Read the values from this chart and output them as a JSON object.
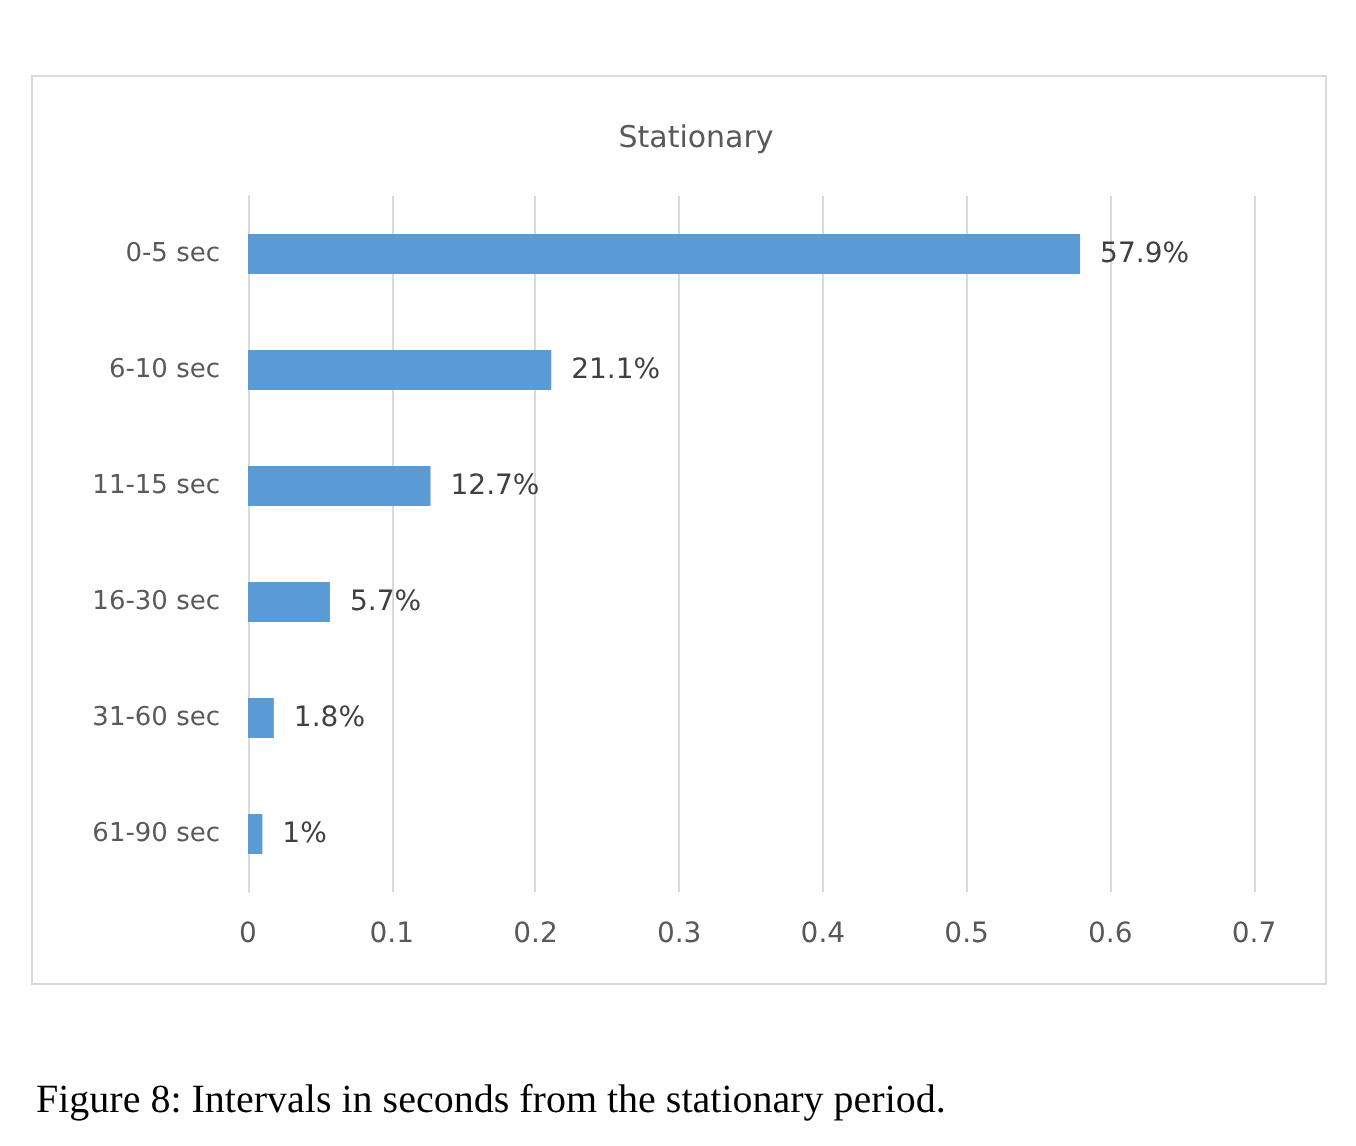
{
  "chart_data": {
    "type": "bar",
    "orientation": "horizontal",
    "title": "Stationary",
    "categories": [
      "0-5 sec",
      "6-10 sec",
      "11-15 sec",
      "16-30 sec",
      "31-60 sec",
      "61-90 sec"
    ],
    "values": [
      0.579,
      0.211,
      0.127,
      0.057,
      0.018,
      0.01
    ],
    "value_labels": [
      "57.9%",
      "21.1%",
      "12.7%",
      "5.7%",
      "1.8%",
      "1%"
    ],
    "color": "#5b9bd5",
    "xlim": [
      0,
      0.7
    ],
    "xticks": [
      0,
      0.1,
      0.2,
      0.3,
      0.4,
      0.5,
      0.6,
      0.7
    ],
    "grid": "x",
    "annotations": [
      "Figure 8: Intervals in seconds from the stationary period."
    ]
  }
}
